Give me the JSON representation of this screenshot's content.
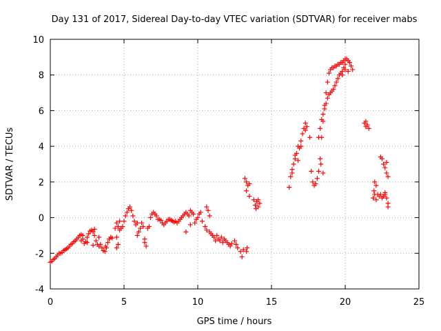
{
  "chart_data": {
    "type": "scatter",
    "title": "Day 131 of 2017, Sidereal Day-to-day VTEC variation (SDTVAR) for receiver mabs",
    "xlabel": "GPS time / hours",
    "ylabel": "SDTVAR / TECUs",
    "xlim": [
      0,
      25
    ],
    "ylim": [
      -4,
      10
    ],
    "xticks": [
      "0",
      "5",
      "10",
      "15",
      "20",
      "25"
    ],
    "yticks": [
      "-4",
      "-2",
      "0",
      "2",
      "4",
      "6",
      "8",
      "10"
    ],
    "grid": true,
    "marker": "plus",
    "color": "#ff0000",
    "series": [
      {
        "name": "SDTVAR",
        "points": [
          [
            0.0,
            -2.5
          ],
          [
            0.1,
            -2.45
          ],
          [
            0.2,
            -2.35
          ],
          [
            0.3,
            -2.3
          ],
          [
            0.4,
            -2.2
          ],
          [
            0.5,
            -2.1
          ],
          [
            0.6,
            -2.0
          ],
          [
            0.7,
            -2.0
          ],
          [
            0.8,
            -1.95
          ],
          [
            0.9,
            -1.85
          ],
          [
            1.0,
            -1.8
          ],
          [
            1.1,
            -1.75
          ],
          [
            1.2,
            -1.7
          ],
          [
            1.3,
            -1.6
          ],
          [
            1.4,
            -1.5
          ],
          [
            1.5,
            -1.45
          ],
          [
            1.6,
            -1.35
          ],
          [
            1.7,
            -1.3
          ],
          [
            1.8,
            -1.2
          ],
          [
            1.9,
            -1.1
          ],
          [
            2.0,
            -1.0
          ],
          [
            2.1,
            -0.95
          ],
          [
            2.2,
            -1.0
          ],
          [
            2.1,
            -1.3
          ],
          [
            2.3,
            -1.45
          ],
          [
            2.4,
            -1.35
          ],
          [
            2.5,
            -1.1
          ],
          [
            2.6,
            -0.9
          ],
          [
            2.7,
            -0.75
          ],
          [
            2.8,
            -0.7
          ],
          [
            2.9,
            -0.8
          ],
          [
            3.0,
            -1.0
          ],
          [
            3.1,
            -1.3
          ],
          [
            3.2,
            -1.5
          ],
          [
            3.3,
            -1.6
          ],
          [
            3.4,
            -1.5
          ],
          [
            3.5,
            -1.7
          ],
          [
            3.6,
            -1.85
          ],
          [
            3.7,
            -1.9
          ],
          [
            3.8,
            -1.7
          ],
          [
            3.9,
            -1.4
          ],
          [
            4.0,
            -1.2
          ],
          [
            4.1,
            -1.1
          ],
          [
            4.2,
            -1.15
          ],
          [
            3.75,
            -1.6
          ],
          [
            2.9,
            -1.55
          ],
          [
            2.5,
            -1.4
          ],
          [
            3.3,
            -1.1
          ],
          [
            3.0,
            -0.65
          ],
          [
            2.2,
            -1.2
          ],
          [
            4.4,
            -0.6
          ],
          [
            4.5,
            -0.3
          ],
          [
            4.6,
            -0.5
          ],
          [
            4.7,
            -0.7
          ],
          [
            4.8,
            -0.6
          ],
          [
            4.5,
            -1.1
          ],
          [
            4.6,
            -1.5
          ],
          [
            4.5,
            -1.7
          ],
          [
            4.7,
            -0.2
          ],
          [
            4.9,
            -0.5
          ],
          [
            5.0,
            -0.2
          ],
          [
            5.1,
            0.1
          ],
          [
            5.2,
            0.3
          ],
          [
            5.3,
            0.5
          ],
          [
            5.4,
            0.6
          ],
          [
            5.5,
            0.4
          ],
          [
            5.6,
            0.1
          ],
          [
            5.7,
            -0.2
          ],
          [
            5.8,
            -0.4
          ],
          [
            5.9,
            -0.3
          ],
          [
            5.9,
            -1.0
          ],
          [
            6.0,
            -0.8
          ],
          [
            6.1,
            -0.6
          ],
          [
            6.2,
            -0.3
          ],
          [
            6.3,
            -0.5
          ],
          [
            6.4,
            -1.4
          ],
          [
            6.5,
            -1.6
          ],
          [
            6.4,
            -1.2
          ],
          [
            6.6,
            -0.6
          ],
          [
            6.7,
            -0.5
          ],
          [
            6.8,
            0.0
          ],
          [
            6.9,
            0.2
          ],
          [
            7.0,
            0.3
          ],
          [
            7.1,
            0.2
          ],
          [
            7.2,
            0.1
          ],
          [
            7.3,
            -0.1
          ],
          [
            7.4,
            -0.1
          ],
          [
            7.5,
            -0.15
          ],
          [
            7.6,
            -0.3
          ],
          [
            7.7,
            -0.4
          ],
          [
            7.8,
            -0.3
          ],
          [
            7.9,
            -0.2
          ],
          [
            8.0,
            -0.1
          ],
          [
            8.1,
            -0.1
          ],
          [
            8.2,
            -0.15
          ],
          [
            8.3,
            -0.2
          ],
          [
            8.4,
            -0.25
          ],
          [
            8.5,
            -0.2
          ],
          [
            8.6,
            -0.3
          ],
          [
            8.7,
            -0.2
          ],
          [
            8.8,
            -0.1
          ],
          [
            8.9,
            0.0
          ],
          [
            9.0,
            0.1
          ],
          [
            9.1,
            0.2
          ],
          [
            9.2,
            0.3
          ],
          [
            9.3,
            0.2
          ],
          [
            9.4,
            0.1
          ],
          [
            9.5,
            0.4
          ],
          [
            9.6,
            0.3
          ],
          [
            9.7,
            0.2
          ],
          [
            9.8,
            -0.3
          ],
          [
            9.9,
            -0.1
          ],
          [
            10.0,
            0.0
          ],
          [
            10.1,
            0.2
          ],
          [
            10.2,
            0.3
          ],
          [
            10.3,
            -0.2
          ],
          [
            9.2,
            -0.8
          ],
          [
            9.5,
            -0.4
          ],
          [
            10.5,
            -0.5
          ],
          [
            10.6,
            0.6
          ],
          [
            10.7,
            0.4
          ],
          [
            10.8,
            0.1
          ],
          [
            10.6,
            -0.7
          ],
          [
            10.8,
            -0.8
          ],
          [
            10.9,
            -0.9
          ],
          [
            11.0,
            -1.0
          ],
          [
            11.1,
            -1.1
          ],
          [
            11.2,
            -1.3
          ],
          [
            11.3,
            -1.0
          ],
          [
            11.4,
            -1.2
          ],
          [
            11.5,
            -1.3
          ],
          [
            11.6,
            -1.1
          ],
          [
            11.7,
            -1.4
          ],
          [
            11.8,
            -1.2
          ],
          [
            11.9,
            -1.3
          ],
          [
            12.0,
            -1.4
          ],
          [
            12.1,
            -1.5
          ],
          [
            12.2,
            -1.6
          ],
          [
            12.3,
            -1.45
          ],
          [
            12.5,
            -1.3
          ],
          [
            12.6,
            -1.5
          ],
          [
            12.7,
            -1.7
          ],
          [
            12.9,
            -1.9
          ],
          [
            13.0,
            -2.2
          ],
          [
            13.1,
            -1.8
          ],
          [
            13.2,
            2.2
          ],
          [
            13.3,
            2.0
          ],
          [
            13.4,
            1.8
          ],
          [
            13.5,
            1.9
          ],
          [
            13.3,
            -1.9
          ],
          [
            13.35,
            -1.7
          ],
          [
            13.5,
            1.2
          ],
          [
            13.9,
            0.7
          ],
          [
            14.0,
            0.9
          ],
          [
            14.1,
            1.0
          ],
          [
            14.2,
            0.8
          ],
          [
            14.1,
            0.6
          ],
          [
            13.95,
            0.5
          ],
          [
            13.8,
            1.0
          ],
          [
            13.3,
            1.5
          ],
          [
            16.2,
            1.7
          ],
          [
            16.3,
            2.3
          ],
          [
            16.4,
            2.7
          ],
          [
            16.5,
            3.0
          ],
          [
            16.6,
            3.3
          ],
          [
            16.7,
            3.6
          ],
          [
            16.8,
            4.0
          ],
          [
            16.9,
            3.9
          ],
          [
            17.0,
            4.3
          ],
          [
            17.1,
            4.7
          ],
          [
            17.2,
            5.0
          ],
          [
            17.3,
            5.3
          ],
          [
            17.4,
            5.1
          ],
          [
            16.4,
            2.5
          ],
          [
            16.6,
            3.5
          ],
          [
            16.8,
            3.2
          ],
          [
            17.0,
            4.0
          ],
          [
            17.3,
            4.9
          ],
          [
            17.6,
            4.5
          ],
          [
            17.7,
            2.6
          ],
          [
            17.8,
            2.0
          ],
          [
            17.9,
            1.8
          ],
          [
            18.0,
            1.9
          ],
          [
            18.1,
            2.2
          ],
          [
            18.2,
            2.6
          ],
          [
            18.3,
            3.3
          ],
          [
            18.4,
            4.5
          ],
          [
            18.5,
            5.4
          ],
          [
            18.6,
            6.3
          ],
          [
            18.7,
            7.0
          ],
          [
            18.8,
            7.6
          ],
          [
            18.9,
            8.1
          ],
          [
            19.0,
            8.3
          ],
          [
            19.1,
            8.4
          ],
          [
            19.2,
            8.4
          ],
          [
            19.3,
            8.5
          ],
          [
            19.4,
            8.5
          ],
          [
            19.5,
            8.6
          ],
          [
            19.6,
            8.6
          ],
          [
            19.7,
            8.7
          ],
          [
            19.8,
            8.7
          ],
          [
            19.9,
            8.8
          ],
          [
            20.0,
            8.9
          ],
          [
            20.1,
            8.9
          ],
          [
            20.2,
            8.8
          ],
          [
            20.3,
            8.7
          ],
          [
            20.4,
            8.5
          ],
          [
            20.5,
            8.3
          ],
          [
            20.2,
            8.2
          ],
          [
            18.2,
            4.5
          ],
          [
            18.3,
            5.0
          ],
          [
            18.4,
            5.5
          ],
          [
            18.5,
            5.8
          ],
          [
            18.6,
            6.1
          ],
          [
            18.7,
            6.4
          ],
          [
            18.8,
            6.7
          ],
          [
            18.9,
            6.9
          ],
          [
            19.0,
            7.0
          ],
          [
            19.1,
            7.1
          ],
          [
            19.2,
            7.2
          ],
          [
            19.3,
            7.4
          ],
          [
            19.4,
            7.6
          ],
          [
            19.5,
            7.8
          ],
          [
            19.6,
            8.0
          ],
          [
            19.7,
            8.1
          ],
          [
            19.8,
            8.2
          ],
          [
            19.9,
            8.4
          ],
          [
            20.0,
            8.6
          ],
          [
            21.3,
            5.3
          ],
          [
            21.4,
            5.1
          ],
          [
            21.5,
            5.2
          ],
          [
            21.6,
            5.0
          ],
          [
            21.4,
            5.4
          ],
          [
            21.9,
            1.1
          ],
          [
            22.0,
            1.3
          ],
          [
            22.1,
            1.8
          ],
          [
            22.0,
            2.0
          ],
          [
            21.95,
            1.5
          ],
          [
            22.2,
            1.3
          ],
          [
            22.3,
            1.2
          ],
          [
            22.4,
            1.3
          ],
          [
            22.5,
            1.1
          ],
          [
            22.6,
            1.2
          ],
          [
            22.7,
            1.4
          ],
          [
            22.8,
            1.1
          ],
          [
            22.9,
            0.8
          ],
          [
            22.9,
            0.6
          ],
          [
            22.4,
            3.4
          ],
          [
            22.5,
            3.3
          ],
          [
            22.6,
            3.0
          ],
          [
            22.7,
            2.8
          ],
          [
            22.8,
            2.5
          ],
          [
            22.9,
            2.3
          ],
          [
            22.8,
            3.1
          ],
          [
            22.1,
            1.0
          ],
          [
            22.7,
            1.3
          ],
          [
            20.0,
            8.3
          ],
          [
            19.8,
            8.0
          ],
          [
            18.5,
            2.5
          ],
          [
            18.35,
            3.0
          ]
        ]
      }
    ]
  }
}
